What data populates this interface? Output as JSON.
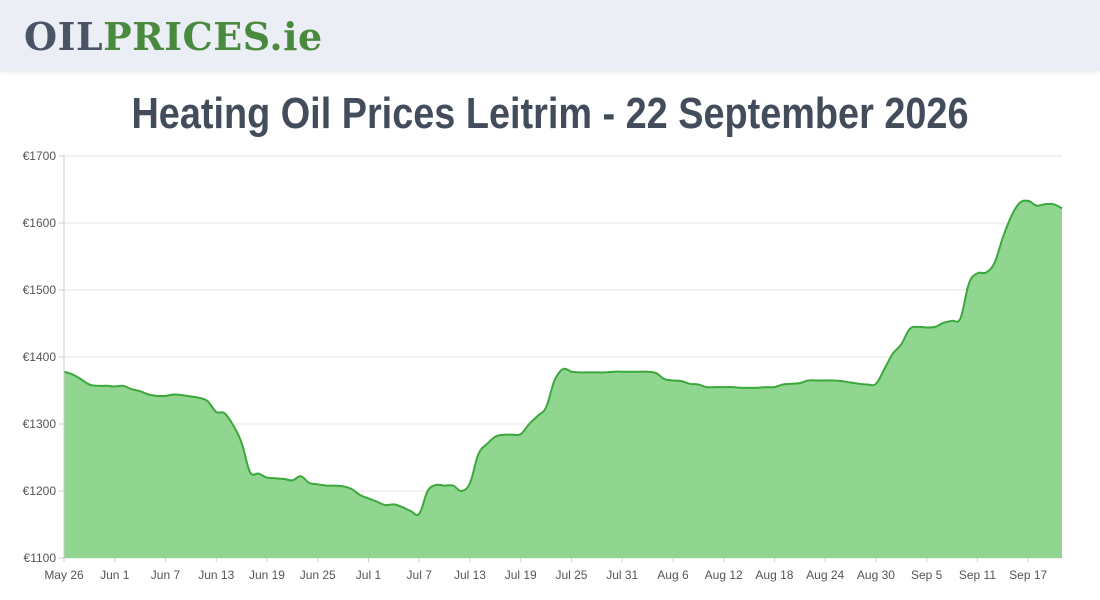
{
  "header": {
    "logo": {
      "part1": "OIL",
      "part2": "PRICES",
      "part3": ".ie"
    }
  },
  "page": {
    "title": "Heating Oil Prices Leitrim - 22 September 2026"
  },
  "colors": {
    "line": "#3aa83a",
    "fill": "#90d690",
    "grid": "#e6e6e6",
    "title": "#424c5b",
    "logo_dark": "#4a5466",
    "logo_green": "#4a8a3f"
  },
  "chart_data": {
    "type": "area",
    "title": "",
    "xlabel": "",
    "ylabel": "",
    "ylim": [
      1100,
      1700
    ],
    "y_ticks": [
      "€1100",
      "€1200",
      "€1300",
      "€1400",
      "€1500",
      "€1600",
      "€1700"
    ],
    "x_tick_labels": [
      "May 26",
      "Jun 1",
      "Jun 7",
      "Jun 13",
      "Jun 19",
      "Jun 25",
      "Jul 1",
      "Jul 7",
      "Jul 13",
      "Jul 19",
      "Jul 25",
      "Jul 31",
      "Aug 6",
      "Aug 12",
      "Aug 18",
      "Aug 24",
      "Aug 30",
      "Sep 5",
      "Sep 11",
      "Sep 17"
    ],
    "grid": true,
    "legend": "none",
    "series": [
      {
        "points": [
          [
            "May 26",
            1378
          ],
          [
            "May 27",
            1374
          ],
          [
            "May 28",
            1367
          ],
          [
            "May 29",
            1359
          ],
          [
            "May 30",
            1357
          ],
          [
            "May 31",
            1357
          ],
          [
            "Jun 1",
            1356
          ],
          [
            "Jun 2",
            1357
          ],
          [
            "Jun 3",
            1352
          ],
          [
            "Jun 4",
            1349
          ],
          [
            "Jun 5",
            1344
          ],
          [
            "Jun 6",
            1342
          ],
          [
            "Jun 7",
            1342
          ],
          [
            "Jun 8",
            1344
          ],
          [
            "Jun 9",
            1343
          ],
          [
            "Jun 10",
            1341
          ],
          [
            "Jun 11",
            1339
          ],
          [
            "Jun 12",
            1334
          ],
          [
            "Jun 13",
            1318
          ],
          [
            "Jun 14",
            1316
          ],
          [
            "Jun 15",
            1298
          ],
          [
            "Jun 16",
            1272
          ],
          [
            "Jun 17",
            1228
          ],
          [
            "Jun 18",
            1226
          ],
          [
            "Jun 19",
            1220
          ],
          [
            "Jun 20",
            1219
          ],
          [
            "Jun 21",
            1218
          ],
          [
            "Jun 22",
            1216
          ],
          [
            "Jun 23",
            1222
          ],
          [
            "Jun 24",
            1212
          ],
          [
            "Jun 25",
            1210
          ],
          [
            "Jun 26",
            1208
          ],
          [
            "Jun 27",
            1208
          ],
          [
            "Jun 28",
            1207
          ],
          [
            "Jun 29",
            1203
          ],
          [
            "Jun 30",
            1194
          ],
          [
            "Jul 1",
            1189
          ],
          [
            "Jul 2",
            1184
          ],
          [
            "Jul 3",
            1179
          ],
          [
            "Jul 4",
            1180
          ],
          [
            "Jul 5",
            1176
          ],
          [
            "Jul 6",
            1170
          ],
          [
            "Jul 7",
            1166
          ],
          [
            "Jul 8",
            1200
          ],
          [
            "Jul 9",
            1209
          ],
          [
            "Jul 10",
            1208
          ],
          [
            "Jul 11",
            1208
          ],
          [
            "Jul 12",
            1200
          ],
          [
            "Jul 13",
            1212
          ],
          [
            "Jul 14",
            1255
          ],
          [
            "Jul 15",
            1270
          ],
          [
            "Jul 16",
            1281
          ],
          [
            "Jul 17",
            1284
          ],
          [
            "Jul 18",
            1284
          ],
          [
            "Jul 19",
            1285
          ],
          [
            "Jul 20",
            1300
          ],
          [
            "Jul 21",
            1312
          ],
          [
            "Jul 22",
            1325
          ],
          [
            "Jul 23",
            1365
          ],
          [
            "Jul 24",
            1382
          ],
          [
            "Jul 25",
            1378
          ],
          [
            "Jul 26",
            1377
          ],
          [
            "Jul 27",
            1377
          ],
          [
            "Jul 28",
            1377
          ],
          [
            "Jul 29",
            1377
          ],
          [
            "Jul 30",
            1378
          ],
          [
            "Jul 31",
            1378
          ],
          [
            "Aug 1",
            1378
          ],
          [
            "Aug 2",
            1378
          ],
          [
            "Aug 3",
            1378
          ],
          [
            "Aug 4",
            1376
          ],
          [
            "Aug 5",
            1367
          ],
          [
            "Aug 6",
            1365
          ],
          [
            "Aug 7",
            1364
          ],
          [
            "Aug 8",
            1360
          ],
          [
            "Aug 9",
            1359
          ],
          [
            "Aug 10",
            1355
          ],
          [
            "Aug 11",
            1355
          ],
          [
            "Aug 12",
            1355
          ],
          [
            "Aug 13",
            1355
          ],
          [
            "Aug 14",
            1354
          ],
          [
            "Aug 15",
            1354
          ],
          [
            "Aug 16",
            1354
          ],
          [
            "Aug 17",
            1355
          ],
          [
            "Aug 18",
            1355
          ],
          [
            "Aug 19",
            1359
          ],
          [
            "Aug 20",
            1360
          ],
          [
            "Aug 21",
            1361
          ],
          [
            "Aug 22",
            1365
          ],
          [
            "Aug 23",
            1365
          ],
          [
            "Aug 24",
            1365
          ],
          [
            "Aug 25",
            1365
          ],
          [
            "Aug 26",
            1364
          ],
          [
            "Aug 27",
            1362
          ],
          [
            "Aug 28",
            1360
          ],
          [
            "Aug 29",
            1359
          ],
          [
            "Aug 30",
            1360
          ],
          [
            "Aug 31",
            1382
          ],
          [
            "Sep 1",
            1405
          ],
          [
            "Sep 2",
            1419
          ],
          [
            "Sep 3",
            1442
          ],
          [
            "Sep 4",
            1445
          ],
          [
            "Sep 5",
            1444
          ],
          [
            "Sep 6",
            1445
          ],
          [
            "Sep 7",
            1451
          ],
          [
            "Sep 8",
            1454
          ],
          [
            "Sep 9",
            1458
          ],
          [
            "Sep 10",
            1510
          ],
          [
            "Sep 11",
            1525
          ],
          [
            "Sep 12",
            1526
          ],
          [
            "Sep 13",
            1540
          ],
          [
            "Sep 14",
            1578
          ],
          [
            "Sep 15",
            1610
          ],
          [
            "Sep 16",
            1630
          ],
          [
            "Sep 17",
            1633
          ],
          [
            "Sep 18",
            1626
          ],
          [
            "Sep 19",
            1628
          ],
          [
            "Sep 20",
            1628
          ],
          [
            "Sep 21",
            1622
          ]
        ]
      }
    ]
  }
}
